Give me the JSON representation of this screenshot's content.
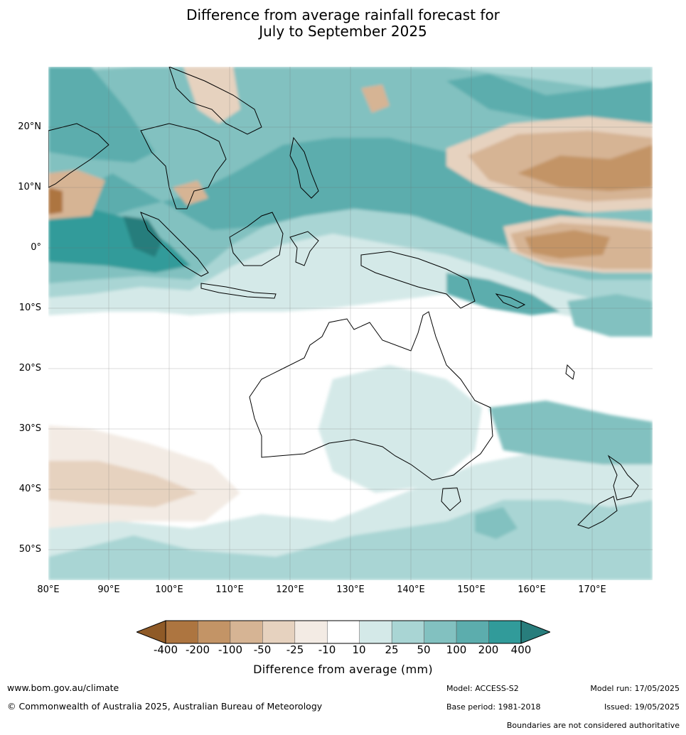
{
  "title": {
    "line1": "Difference from average rainfall forecast for",
    "line2": "July to September 2025"
  },
  "map": {
    "lat_labels": [
      "20°N",
      "10°N",
      "0°",
      "10°S",
      "20°S",
      "30°S",
      "40°S",
      "50°S"
    ],
    "lon_labels": [
      "80°E",
      "90°E",
      "100°E",
      "110°E",
      "120°E",
      "130°E",
      "140°E",
      "150°E",
      "160°E",
      "170°E"
    ]
  },
  "legend": {
    "tick_labels": [
      "-400",
      "-200",
      "-100",
      "-50",
      "-25",
      "-10",
      "10",
      "25",
      "50",
      "100",
      "200",
      "400"
    ],
    "colors": [
      "#8f5a27",
      "#ad7540",
      "#c39466",
      "#d6b494",
      "#e6d2bf",
      "#f3ebe4",
      "#ffffff",
      "#d4e9e8",
      "#a9d5d4",
      "#82c1c0",
      "#5cadad",
      "#319b9a",
      "#287d7c"
    ],
    "title": "Difference from average (mm)"
  },
  "footer": {
    "url": "www.bom.gov.au/climate",
    "copyright": "© Commonwealth of Australia 2025, Australian Bureau of Meteorology",
    "model": "Model: ACCESS-S2",
    "base_period": "Base period: 1981-2018",
    "model_run": "Model run: 17/05/2025",
    "issued": "Issued: 19/05/2025",
    "disclaimer": "Boundaries are not considered authoritative"
  }
}
